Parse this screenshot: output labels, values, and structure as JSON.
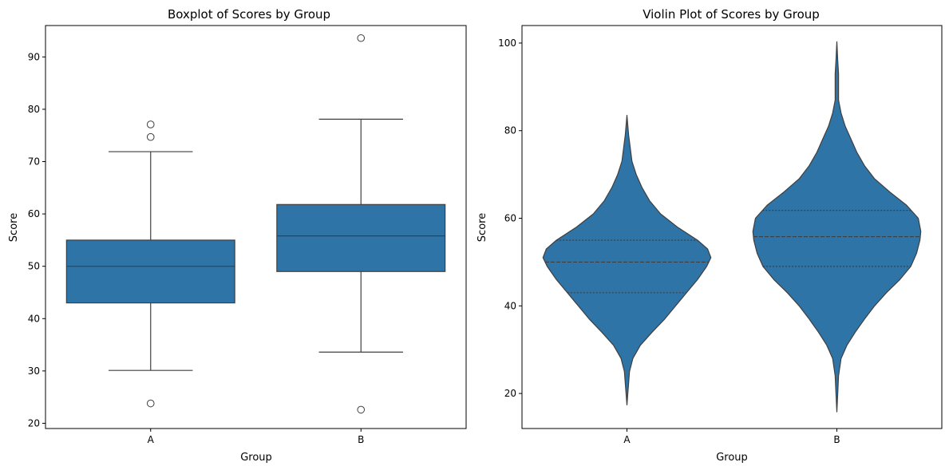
{
  "theme": {
    "fill": "#2e74a7",
    "line": "#3f3f3f",
    "background": "#ffffff"
  },
  "chart_data": [
    {
      "type": "box",
      "title": "Boxplot of Scores by Group",
      "xlabel": "Group",
      "ylabel": "Score",
      "categories": [
        "A",
        "B"
      ],
      "ylim": [
        19,
        96
      ],
      "yticks": [
        20,
        30,
        40,
        50,
        60,
        70,
        80,
        90
      ],
      "boxes": [
        {
          "group": "A",
          "whisker_low": 30.1,
          "q1": 43.0,
          "median": 50.0,
          "q3": 55.0,
          "whisker_high": 71.9,
          "outliers": [
            77.1,
            74.7,
            23.8
          ]
        },
        {
          "group": "B",
          "whisker_low": 33.6,
          "q1": 49.0,
          "median": 55.8,
          "q3": 61.8,
          "whisker_high": 78.1,
          "outliers": [
            93.6,
            22.6
          ]
        }
      ],
      "grid": false,
      "legend": "none"
    },
    {
      "type": "violin",
      "title": "Violin Plot of Scores by Group",
      "xlabel": "Group",
      "ylabel": "Score",
      "categories": [
        "A",
        "B"
      ],
      "ylim": [
        12,
        104
      ],
      "yticks": [
        20,
        40,
        60,
        80,
        100
      ],
      "inner": "quartile",
      "violins": [
        {
          "group": "A",
          "min": 17.4,
          "max": 83.5,
          "q1": 43.0,
          "median": 50.0,
          "q3": 55.0,
          "density": [
            [
              17.4,
              0.0
            ],
            [
              20,
              0.01
            ],
            [
              25,
              0.03
            ],
            [
              28,
              0.07
            ],
            [
              31,
              0.16
            ],
            [
              34,
              0.3
            ],
            [
              37,
              0.45
            ],
            [
              40,
              0.58
            ],
            [
              43,
              0.71
            ],
            [
              46,
              0.84
            ],
            [
              49,
              0.95
            ],
            [
              51,
              1.0
            ],
            [
              53,
              0.96
            ],
            [
              55,
              0.84
            ],
            [
              58,
              0.6
            ],
            [
              61,
              0.4
            ],
            [
              64,
              0.27
            ],
            [
              67,
              0.18
            ],
            [
              70,
              0.11
            ],
            [
              73,
              0.06
            ],
            [
              76,
              0.04
            ],
            [
              79,
              0.02
            ],
            [
              83.5,
              0.0
            ]
          ]
        },
        {
          "group": "B",
          "min": 15.8,
          "max": 100.3,
          "q1": 49.0,
          "median": 55.8,
          "q3": 61.8,
          "density": [
            [
              15.8,
              0.0
            ],
            [
              20,
              0.01
            ],
            [
              24,
              0.02
            ],
            [
              28,
              0.05
            ],
            [
              31,
              0.12
            ],
            [
              34,
              0.22
            ],
            [
              37,
              0.33
            ],
            [
              40,
              0.45
            ],
            [
              43,
              0.59
            ],
            [
              46,
              0.75
            ],
            [
              49,
              0.88
            ],
            [
              52,
              0.95
            ],
            [
              55,
              0.99
            ],
            [
              57,
              1.0
            ],
            [
              60,
              0.97
            ],
            [
              63,
              0.83
            ],
            [
              66,
              0.63
            ],
            [
              69,
              0.45
            ],
            [
              72,
              0.33
            ],
            [
              75,
              0.24
            ],
            [
              78,
              0.17
            ],
            [
              81,
              0.1
            ],
            [
              84,
              0.05
            ],
            [
              87,
              0.02
            ],
            [
              90,
              0.02
            ],
            [
              93,
              0.02
            ],
            [
              96,
              0.01
            ],
            [
              100.3,
              0.0
            ]
          ]
        }
      ],
      "grid": false,
      "legend": "none"
    }
  ]
}
